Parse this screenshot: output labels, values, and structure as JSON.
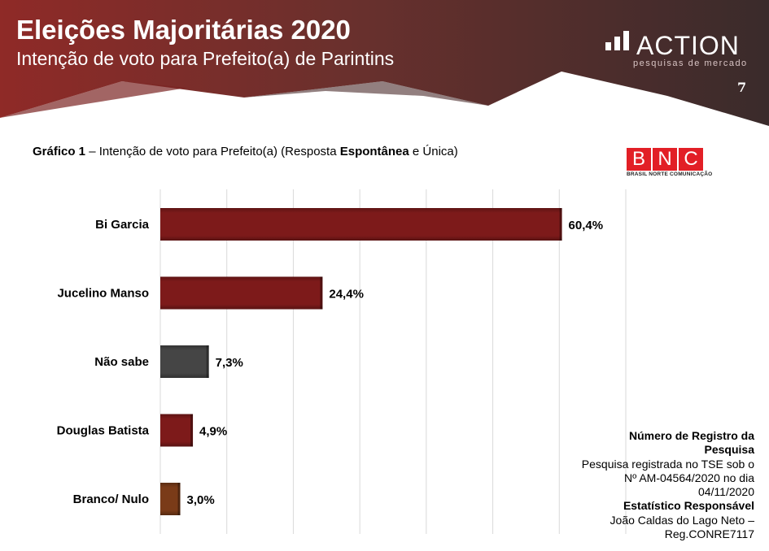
{
  "header": {
    "title": "Eleições Majoritárias 2020",
    "subtitle": "Intenção de voto para Prefeito(a) de Parintins",
    "page_number": "7",
    "logo_word": "ACTION",
    "logo_tagline": "pesquisas de mercado",
    "colors": {
      "dark": "#3b2c2c",
      "red": "#8c2a28",
      "mid": "#5e3431"
    }
  },
  "caption": {
    "label": "Gráfico 1",
    "text_1": " – Intenção de voto para Prefeito(a) (Resposta ",
    "emph": "Espontânea",
    "text_2": " e Única)"
  },
  "bnc_logo": {
    "letters": [
      "B",
      "N",
      "C"
    ],
    "subtitle": "BRASIL NORTE COMUNICAÇÃO",
    "color": "#e21f26"
  },
  "chart_data": {
    "type": "bar",
    "orientation": "horizontal",
    "categories": [
      "Bi Garcia",
      "Jucelino Manso",
      "Não sabe",
      "Douglas Batista",
      "Branco/ Nulo"
    ],
    "values": [
      60.4,
      24.4,
      7.3,
      4.9,
      3.0
    ],
    "data_labels": [
      "60,4%",
      "24,4%",
      "7,3%",
      "4,9%",
      "3,0%"
    ],
    "colors": [
      "#7d1a1a",
      "#7d1a1a",
      "#454545",
      "#7d1a1a",
      "#7a3b18"
    ],
    "xlim": [
      0,
      70
    ],
    "grid": true,
    "title": "",
    "xlabel": "",
    "ylabel": ""
  },
  "notes": {
    "line1": "Número de Registro da",
    "line2": "Pesquisa",
    "line3": "Pesquisa registrada no TSE sob o",
    "line4": "Nº AM-04564/2020 no dia",
    "line5": "04/11/2020",
    "line6": "Estatístico Responsável",
    "line7": "João Caldas do Lago Neto –",
    "line8": "Reg.CONRE7117"
  }
}
